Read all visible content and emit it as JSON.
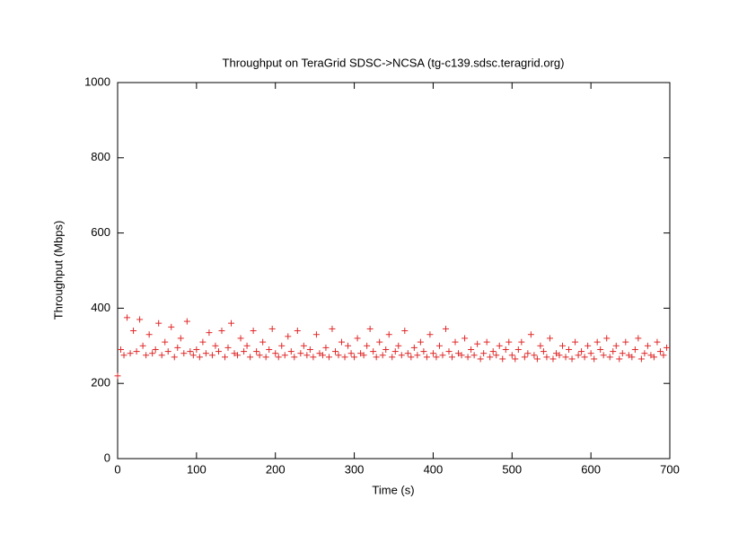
{
  "chart_data": {
    "type": "scatter",
    "title": "Throughput on TeraGrid SDSC->NCSA (tg-c139.sdsc.teragrid.org)",
    "x_label": "Time (s)",
    "y_label": "Throughput (Mbps)",
    "color": "#e02828",
    "xlim": [
      0,
      700
    ],
    "xticks": [
      0,
      100,
      200,
      300,
      400,
      500,
      600,
      700
    ],
    "ylim": [
      0,
      1000
    ],
    "yticks": [
      0,
      200,
      400,
      600,
      800,
      1000
    ],
    "x": [
      0,
      4,
      8,
      12,
      16,
      20,
      24,
      28,
      32,
      36,
      40,
      44,
      48,
      52,
      56,
      60,
      64,
      68,
      72,
      76,
      80,
      84,
      88,
      92,
      96,
      100,
      104,
      108,
      112,
      116,
      120,
      124,
      128,
      132,
      136,
      140,
      144,
      148,
      152,
      156,
      160,
      164,
      168,
      172,
      176,
      180,
      184,
      188,
      192,
      196,
      200,
      204,
      208,
      212,
      216,
      220,
      224,
      228,
      232,
      236,
      240,
      244,
      248,
      252,
      256,
      260,
      264,
      268,
      272,
      276,
      280,
      284,
      288,
      292,
      296,
      300,
      304,
      308,
      312,
      316,
      320,
      324,
      328,
      332,
      336,
      340,
      344,
      348,
      352,
      356,
      360,
      364,
      368,
      372,
      376,
      380,
      384,
      388,
      392,
      396,
      400,
      404,
      408,
      412,
      416,
      420,
      424,
      428,
      432,
      436,
      440,
      444,
      448,
      452,
      456,
      460,
      464,
      468,
      472,
      476,
      480,
      484,
      488,
      492,
      496,
      500,
      504,
      508,
      512,
      516,
      520,
      524,
      528,
      532,
      536,
      540,
      544,
      548,
      552,
      556,
      560,
      564,
      568,
      572,
      576,
      580,
      584,
      588,
      592,
      596,
      600,
      604,
      608,
      612,
      616,
      620,
      624,
      628,
      632,
      636,
      640,
      644,
      648,
      652,
      656,
      660,
      664,
      668,
      672,
      676,
      680,
      684,
      688,
      692,
      696
    ],
    "y": [
      220,
      290,
      275,
      375,
      280,
      340,
      285,
      370,
      300,
      275,
      330,
      280,
      290,
      360,
      275,
      310,
      285,
      350,
      270,
      295,
      320,
      280,
      365,
      285,
      275,
      290,
      270,
      310,
      280,
      335,
      275,
      300,
      285,
      340,
      270,
      295,
      360,
      280,
      275,
      320,
      285,
      300,
      270,
      340,
      285,
      275,
      310,
      270,
      290,
      345,
      280,
      270,
      300,
      275,
      325,
      285,
      270,
      340,
      280,
      300,
      275,
      290,
      270,
      330,
      280,
      275,
      295,
      270,
      345,
      285,
      275,
      310,
      270,
      300,
      280,
      270,
      320,
      280,
      275,
      300,
      345,
      285,
      270,
      310,
      275,
      290,
      330,
      270,
      285,
      300,
      275,
      340,
      280,
      270,
      295,
      275,
      310,
      285,
      270,
      330,
      280,
      270,
      300,
      275,
      345,
      285,
      270,
      310,
      280,
      275,
      320,
      270,
      290,
      275,
      305,
      265,
      280,
      310,
      270,
      285,
      275,
      300,
      265,
      290,
      310,
      275,
      265,
      290,
      310,
      270,
      280,
      330,
      275,
      265,
      300,
      285,
      270,
      320,
      265,
      280,
      275,
      300,
      270,
      290,
      265,
      310,
      275,
      285,
      270,
      300,
      280,
      265,
      310,
      290,
      275,
      320,
      270,
      285,
      300,
      265,
      280,
      310,
      275,
      270,
      290,
      320,
      265,
      280,
      300,
      275,
      270,
      310,
      285,
      275,
      295
    ]
  }
}
